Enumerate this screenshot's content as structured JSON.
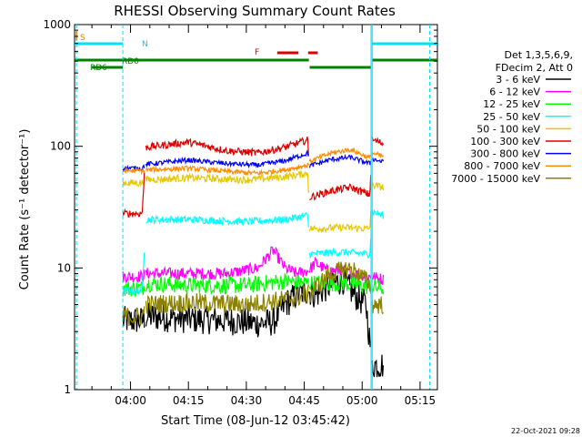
{
  "chart_data": {
    "type": "line",
    "title": "RHESSI Observing Summary Count Rates",
    "xlabel": "Start Time (08-Jun-12 03:45:42)",
    "ylabel": "Count Rate (s⁻¹ detector⁻¹)",
    "y_scale": "log",
    "ylim": [
      1,
      1000
    ],
    "y_ticks": [
      {
        "value": 1,
        "label": "1"
      },
      {
        "value": 10,
        "label": "10"
      },
      {
        "value": 100,
        "label": "100"
      },
      {
        "value": 1000,
        "label": "1000"
      }
    ],
    "x_ticks": [
      {
        "minutes": 15,
        "label": "04:00"
      },
      {
        "minutes": 30,
        "label": "04:15"
      },
      {
        "minutes": 45,
        "label": "04:30"
      },
      {
        "minutes": 60,
        "label": "04:45"
      },
      {
        "minutes": 75,
        "label": "05:00"
      },
      {
        "minutes": 90,
        "label": "05:15"
      }
    ],
    "x_range_minutes_after_0345": [
      0.5,
      94.5
    ],
    "legend": {
      "header": [
        "Det 1,3,5,6,9,",
        "FDecim 2, Att 0"
      ],
      "placement": "right",
      "entries": [
        {
          "label": "3 - 6 keV",
          "color": "#000000"
        },
        {
          "label": "6 - 12 keV",
          "color": "#ff00ff"
        },
        {
          "label": "12 - 25 keV",
          "color": "#00ff00"
        },
        {
          "label": "25 - 50 keV",
          "color": "#00ffff"
        },
        {
          "label": "50 - 100 keV",
          "color": "#e6c800"
        },
        {
          "label": "100 - 300 keV",
          "color": "#dc0000"
        },
        {
          "label": "300 - 800 keV",
          "color": "#0000ff"
        },
        {
          "label": "800 - 7000 keV",
          "color": "#ff8c00"
        },
        {
          "label": "7000 - 15000 keV",
          "color": "#8c8200"
        }
      ]
    },
    "flag_labels": {
      "S": "S",
      "N": "N",
      "F": "F",
      "RD0": "RD0",
      "RD6": "RD6"
    },
    "flag_colors": {
      "S": "#e08000",
      "N": "#00e0ff",
      "F": "#dc0000",
      "RD": "#008000"
    },
    "data_windows_minutes": [
      [
        13.0,
        18.7
      ],
      [
        19.0,
        61.2
      ],
      [
        61.4,
        77.3
      ],
      [
        77.6,
        80.6
      ]
    ],
    "series": [
      {
        "name": "3 - 6 keV",
        "color": "#000000",
        "points": [
          [
            14,
            3.7
          ],
          [
            18,
            3.7
          ],
          [
            19,
            4
          ],
          [
            30,
            3.8
          ],
          [
            40,
            3.7
          ],
          [
            48,
            3.5
          ],
          [
            52,
            3.6
          ],
          [
            55,
            5
          ],
          [
            58,
            6
          ],
          [
            61,
            6.5
          ],
          [
            63,
            6
          ],
          [
            66,
            7
          ],
          [
            70,
            8
          ],
          [
            73,
            6
          ],
          [
            76,
            5
          ],
          [
            77.6,
            1.6
          ],
          [
            80.6,
            1.6
          ]
        ],
        "noise": 0.12
      },
      {
        "name": "6 - 12 keV",
        "color": "#ff00ff",
        "points": [
          [
            14,
            8.5
          ],
          [
            18,
            8.5
          ],
          [
            19,
            9
          ],
          [
            30,
            9
          ],
          [
            40,
            9
          ],
          [
            48,
            10
          ],
          [
            52,
            14
          ],
          [
            55,
            10
          ],
          [
            58,
            9
          ],
          [
            61,
            9.5
          ],
          [
            63,
            11
          ],
          [
            66,
            9.5
          ],
          [
            70,
            9.5
          ],
          [
            73,
            9
          ],
          [
            77,
            8.5
          ],
          [
            77.6,
            8.5
          ],
          [
            80.6,
            8
          ]
        ],
        "noise": 0.05
      },
      {
        "name": "12 - 25 keV",
        "color": "#00ff00",
        "points": [
          [
            14,
            6.8
          ],
          [
            18,
            6.8
          ],
          [
            19,
            7.5
          ],
          [
            30,
            7.2
          ],
          [
            45,
            7.2
          ],
          [
            55,
            7.8
          ],
          [
            61,
            7.5
          ],
          [
            63,
            7.5
          ],
          [
            70,
            7.5
          ],
          [
            77,
            7
          ],
          [
            77.6,
            7
          ],
          [
            80.6,
            6.8
          ]
        ],
        "noise": 0.07
      },
      {
        "name": "25 - 50 keV",
        "color": "#00ffff",
        "points": [
          [
            14,
            6.5
          ],
          [
            18,
            6.5
          ],
          [
            19,
            25
          ],
          [
            30,
            25
          ],
          [
            45,
            24
          ],
          [
            55,
            25
          ],
          [
            61,
            27
          ],
          [
            61.4,
            13
          ],
          [
            70,
            13.5
          ],
          [
            77,
            13
          ],
          [
            77.6,
            29
          ],
          [
            80.6,
            27
          ]
        ],
        "noise": 0.03
      },
      {
        "name": "50 - 100 keV",
        "color": "#e6c800",
        "points": [
          [
            14,
            50
          ],
          [
            18,
            50
          ],
          [
            19,
            53
          ],
          [
            30,
            55
          ],
          [
            45,
            53
          ],
          [
            55,
            56
          ],
          [
            61,
            60
          ],
          [
            61.4,
            21
          ],
          [
            70,
            21.5
          ],
          [
            77,
            21
          ],
          [
            77.6,
            48
          ],
          [
            80.6,
            46
          ]
        ],
        "noise": 0.03
      },
      {
        "name": "100 - 300 keV",
        "color": "#dc0000",
        "points": [
          [
            14,
            28
          ],
          [
            18,
            28
          ],
          [
            19,
            98
          ],
          [
            30,
            108
          ],
          [
            40,
            92
          ],
          [
            48,
            88
          ],
          [
            55,
            98
          ],
          [
            61,
            113
          ],
          [
            61.4,
            38
          ],
          [
            67,
            43
          ],
          [
            72,
            46
          ],
          [
            77,
            40
          ],
          [
            77.6,
            113
          ],
          [
            80.6,
            105
          ]
        ],
        "noise": 0.03
      },
      {
        "name": "300 - 800 keV",
        "color": "#0000ff",
        "points": [
          [
            14,
            66
          ],
          [
            18,
            66
          ],
          [
            19,
            71
          ],
          [
            30,
            77
          ],
          [
            40,
            72
          ],
          [
            48,
            70
          ],
          [
            55,
            76
          ],
          [
            61,
            88
          ],
          [
            61.4,
            69
          ],
          [
            67,
            78
          ],
          [
            72,
            81
          ],
          [
            77,
            72
          ],
          [
            77.6,
            79
          ],
          [
            80.6,
            74
          ]
        ],
        "noise": 0.02
      },
      {
        "name": "800 - 7000 keV",
        "color": "#ff8c00",
        "points": [
          [
            14,
            63
          ],
          [
            18,
            63
          ],
          [
            19,
            64
          ],
          [
            30,
            66
          ],
          [
            40,
            62
          ],
          [
            48,
            60
          ],
          [
            55,
            64
          ],
          [
            61,
            70
          ],
          [
            61.4,
            75
          ],
          [
            67,
            88
          ],
          [
            72,
            94
          ],
          [
            77,
            80
          ],
          [
            77.6,
            88
          ],
          [
            80.6,
            82
          ]
        ],
        "noise": 0.02
      },
      {
        "name": "7000 - 15000 keV",
        "color": "#8c8200",
        "points": [
          [
            14,
            4
          ],
          [
            18,
            4
          ],
          [
            19,
            5
          ],
          [
            30,
            5.2
          ],
          [
            45,
            5
          ],
          [
            55,
            5.5
          ],
          [
            61,
            6
          ],
          [
            63,
            7
          ],
          [
            67,
            9
          ],
          [
            72,
            10
          ],
          [
            77,
            7.5
          ],
          [
            77.6,
            5
          ],
          [
            80.6,
            5
          ]
        ],
        "noise": 0.08
      }
    ]
  },
  "footer": {
    "date": "22-Oct-2021 09:28"
  }
}
